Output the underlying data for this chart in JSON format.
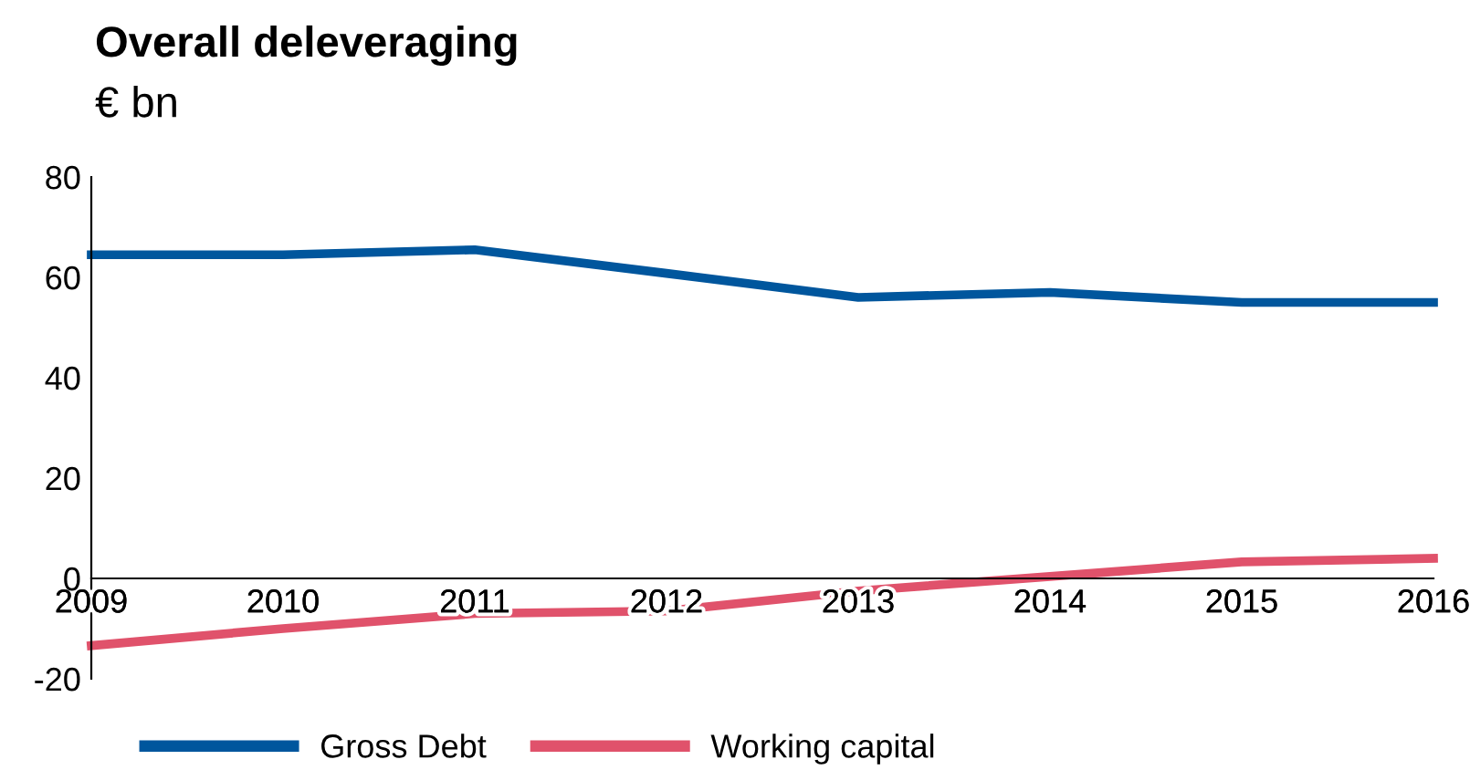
{
  "chart_data": {
    "type": "line",
    "title": "Overall deleveraging",
    "subtitle": "€ bn",
    "x": [
      2009,
      2010,
      2011,
      2012,
      2013,
      2014,
      2015,
      2016
    ],
    "series": [
      {
        "name": "Gross Debt",
        "color": "#00569d",
        "values": [
          64.5,
          64.5,
          65.5,
          60.8,
          56,
          57,
          55,
          55
        ]
      },
      {
        "name": "Working capital",
        "color": "#e0526b",
        "values": [
          -13.4,
          -10,
          -7,
          -6.5,
          -2.5,
          0.4,
          3.3,
          4
        ]
      }
    ],
    "xlim": [
      2009,
      2016
    ],
    "xticks": [
      2009,
      2010,
      2011,
      2012,
      2013,
      2014,
      2015,
      2016
    ],
    "ylim": [
      -20,
      80
    ],
    "yticks": [
      -20,
      0,
      20,
      40,
      60,
      80
    ],
    "grid": false,
    "legend": "bottom",
    "marker": "none",
    "line_style": "solid"
  }
}
